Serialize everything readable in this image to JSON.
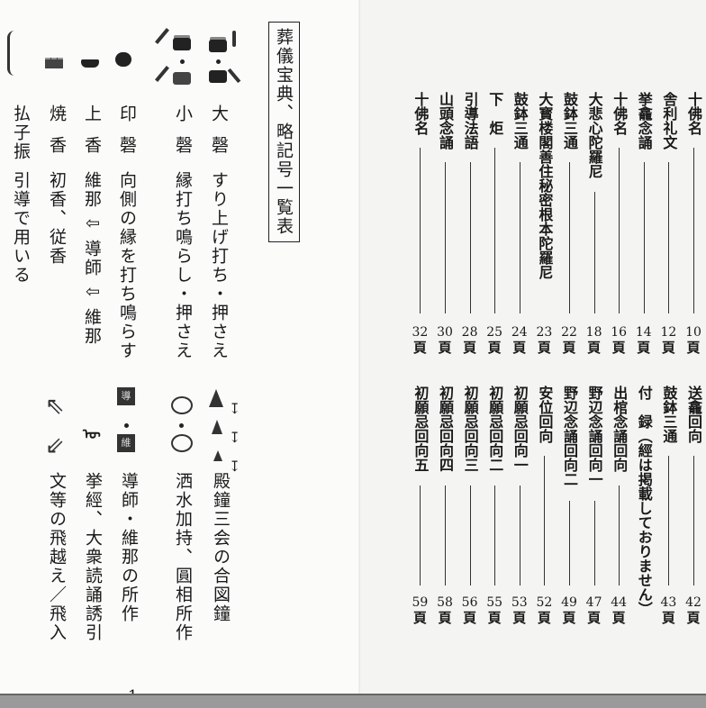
{
  "left_page": {
    "title": "葬儀宝典、略記号一覧表",
    "symbols_top": [
      {
        "icon": "daikei-drum-icon",
        "label": "大磬",
        "description": "すり上げ打ち・押さえ"
      },
      {
        "icon": "shokei-drum-icon",
        "label": "小磬",
        "description": "縁打ち鳴らし・押さえ"
      },
      {
        "icon": "inkei-icon",
        "label": "印磬",
        "description": "向側の縁を打ち鳴らす"
      },
      {
        "icon": "incense-burner-icon",
        "label": "上香",
        "description": "維那 ⇩ 導師 ⇩ 維那"
      },
      {
        "icon": "incense-icon",
        "label": "焼香",
        "description": "初香、従香"
      },
      {
        "icon": "hossu-icon",
        "label": "払子振",
        "description": "引導で用いる"
      }
    ],
    "symbols_bottom": [
      {
        "icon": "bell-icon",
        "description": "殿鐘三会の合図鐘"
      },
      {
        "icon": "water-bowl-icon",
        "description": "洒水加持、圓相所作"
      },
      {
        "icon": "doshi-ino-badge-icon",
        "badges": [
          "導",
          "維"
        ],
        "description": "導師・維那の所作"
      },
      {
        "icon": "kyokei-icon",
        "description": "挙經、大衆読誦誘引"
      },
      {
        "icon": "arrow-icon",
        "description": "文等の飛越え／飛入"
      }
    ],
    "page_number": "- 1 -"
  },
  "right_page": {
    "page_unit": "頁",
    "toc_top": [
      {
        "title": "十佛名",
        "page": "10"
      },
      {
        "title": "舎利礼文",
        "page": "12"
      },
      {
        "title": "挙龕念誦",
        "page": "14"
      },
      {
        "title": "十佛名",
        "page": "16"
      },
      {
        "title": "大悲心陀羅尼",
        "page": "18"
      },
      {
        "title": "鼓鉢三通",
        "page": "22"
      },
      {
        "title": "大寳楼閣善住秘密根本陀羅尼",
        "page": "23"
      },
      {
        "title": "鼓鉢三通",
        "page": "24"
      },
      {
        "title": "下　炬",
        "page": "25"
      },
      {
        "title": "引導法語",
        "page": "28"
      },
      {
        "title": "山頭念誦",
        "page": "30"
      },
      {
        "title": "十佛名",
        "page": "32"
      }
    ],
    "toc_bottom": [
      {
        "title": "送龕回向",
        "page": "42"
      },
      {
        "title": "鼓鉢三通",
        "page": "43"
      },
      {
        "title": "付　録（經は掲載しておりません）",
        "page": ""
      },
      {
        "title": "出棺念誦回向",
        "page": "44"
      },
      {
        "title": "野辺念誦回向一",
        "page": "47"
      },
      {
        "title": "野辺念誦回向二",
        "page": "49"
      },
      {
        "title": "安位回向",
        "page": "52"
      },
      {
        "title": "初願忌回向一",
        "page": "53"
      },
      {
        "title": "初願忌回向二",
        "page": "55"
      },
      {
        "title": "初願忌回向三",
        "page": "56"
      },
      {
        "title": "初願忌回向四",
        "page": "58"
      },
      {
        "title": "初願忌回向五",
        "page": "59"
      }
    ]
  }
}
